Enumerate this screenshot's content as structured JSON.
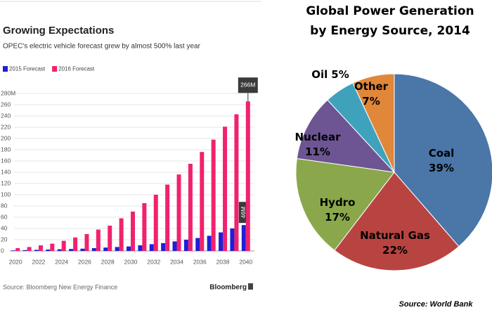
{
  "chart_data": [
    {
      "type": "bar",
      "title": "Growing Expectations",
      "subtitle": "OPEC's electric vehicle forecast grew by almost 500% last year",
      "categories": [
        "2020",
        null,
        "2022",
        null,
        "2024",
        null,
        "2026",
        null,
        "2028",
        null,
        "2030",
        null,
        "2032",
        null,
        "2034",
        null,
        "2036",
        null,
        "2038",
        null,
        "2040"
      ],
      "series": [
        {
          "name": "2015 Forecast",
          "color": "#1f1fd6",
          "values": [
            1,
            1.5,
            2,
            2.5,
            3,
            3.5,
            4,
            5,
            6,
            7,
            8,
            10,
            12,
            14,
            17,
            20,
            23,
            27,
            33,
            40,
            46
          ],
          "value_labels": [
            null,
            null,
            null,
            null,
            null,
            null,
            null,
            null,
            null,
            null,
            null,
            null,
            null,
            null,
            null,
            null,
            null,
            null,
            null,
            null,
            "46M"
          ]
        },
        {
          "name": "2016 Forecast",
          "color": "#f0226e",
          "values": [
            5,
            7,
            10,
            13,
            18,
            24,
            30,
            38,
            45,
            58,
            70,
            85,
            100,
            118,
            136,
            155,
            176,
            198,
            221,
            243,
            266
          ],
          "value_labels": [
            null,
            null,
            null,
            null,
            null,
            null,
            null,
            null,
            null,
            null,
            null,
            null,
            null,
            null,
            null,
            null,
            null,
            null,
            null,
            null,
            "266M"
          ]
        }
      ],
      "ylim": [
        0,
        280
      ],
      "yticks": [
        0,
        20,
        40,
        60,
        80,
        100,
        120,
        140,
        160,
        180,
        200,
        220,
        240,
        260,
        {
          "value": 280,
          "label": "280M"
        }
      ],
      "grid": true,
      "legend": "top-left",
      "source": "Source: Bloomberg New Energy Finance",
      "brand": "Bloomberg"
    },
    {
      "type": "pie",
      "title": "Global Power Generation by Energy Source, 2014",
      "categories": [
        "Coal",
        "Natural Gas",
        "Hydro",
        "Nuclear",
        "Oil",
        "Other"
      ],
      "values": [
        39,
        22,
        17,
        11,
        5,
        7
      ],
      "value_labels": [
        "39%",
        "22%",
        "17%",
        "11%",
        "5%",
        "7%"
      ],
      "colors": [
        "#4a76a8",
        "#b84441",
        "#8aa84b",
        "#6c5592",
        "#3fa2bc",
        "#e0873a"
      ],
      "source": "Source: World Bank"
    }
  ]
}
